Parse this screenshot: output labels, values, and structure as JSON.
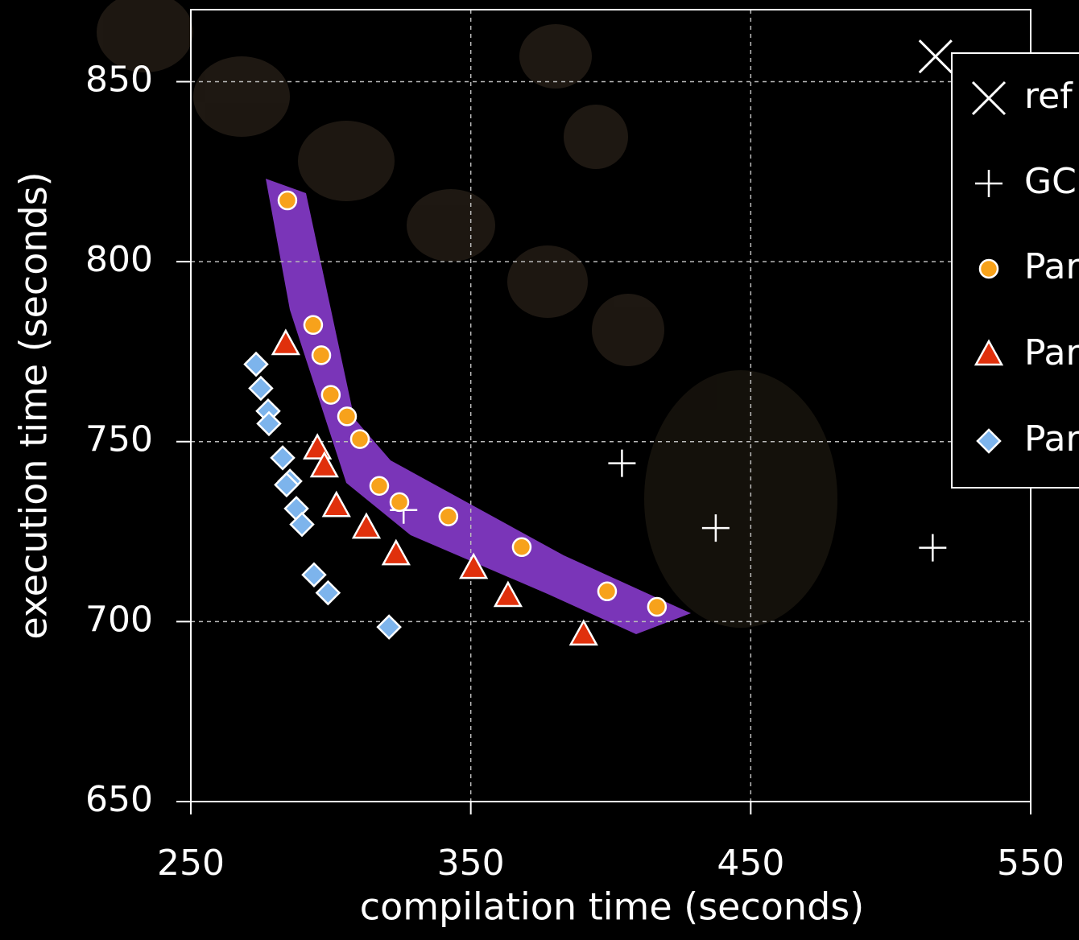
{
  "chart_data": {
    "type": "scatter",
    "x_label": "compilation time (seconds)",
    "y_label": "execution time (seconds)",
    "xlim": [
      250,
      550
    ],
    "ylim": [
      650,
      870
    ],
    "xticks": [
      250,
      350,
      450,
      550
    ],
    "yticks": [
      650,
      700,
      750,
      800,
      850
    ],
    "grid": true,
    "legend": "right",
    "series": [
      {
        "name": "ref",
        "marker": "x",
        "color": "#ffffff",
        "x": [
          516
        ],
        "values": [
          857
        ]
      },
      {
        "name": "GC",
        "marker": "plus",
        "color": "#ffffff",
        "x": [
          404,
          437.5,
          515,
          326
        ],
        "values": [
          744,
          726,
          720.5,
          731
        ]
      },
      {
        "name": "Par",
        "marker": "circle",
        "color": "#f7a21b",
        "x": [
          284.5,
          293.7,
          296.6,
          300,
          305.8,
          310.4,
          317.3,
          324.5,
          342,
          368.2,
          398.7,
          416.5
        ],
        "values": [
          817,
          782.4,
          774,
          763,
          757,
          750.7,
          737.7,
          733.2,
          729.2,
          720.7,
          708.4,
          704.1
        ]
      },
      {
        "name": "Par",
        "marker": "triangle",
        "color": "#e0300c",
        "x": [
          283.9,
          295.2,
          297.7,
          302,
          312.7,
          323.3,
          351,
          363.3,
          390.3
        ],
        "values": [
          777,
          748,
          743,
          732,
          726,
          718.6,
          714.8,
          707,
          696.3
        ]
      },
      {
        "name": "Par",
        "marker": "diamond",
        "color": "#7db4ec",
        "x": [
          273.3,
          275,
          277.6,
          277.9,
          282.8,
          285.4,
          284.2,
          287.7,
          289.7,
          294,
          299,
          320.8
        ],
        "values": [
          771.5,
          764.8,
          758.5,
          755,
          745.5,
          739,
          738,
          731.4,
          727,
          713,
          708,
          698.5
        ]
      }
    ]
  }
}
